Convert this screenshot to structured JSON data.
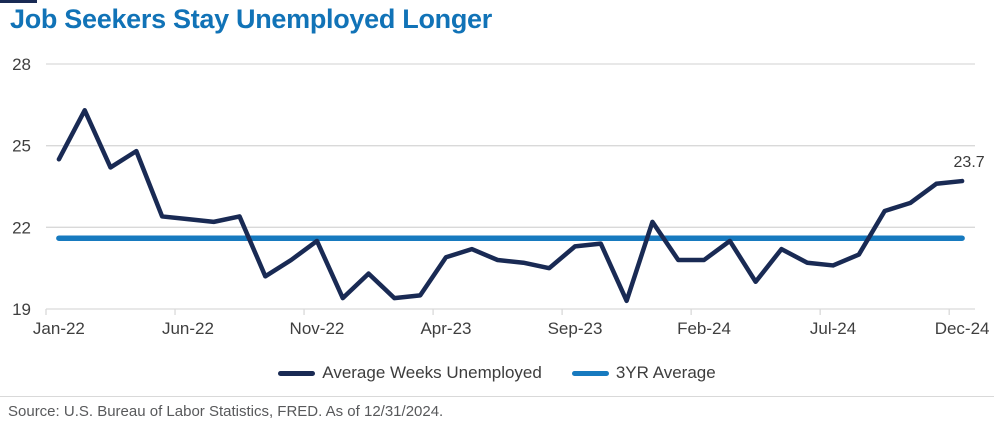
{
  "title": "Job Seekers Stay Unemployed Longer",
  "source_note": "Source: U.S. Bureau of Labor Statistics, FRED. As of 12/31/2024.",
  "colors": {
    "title": "#1173b7",
    "series_line": "#192a54",
    "average_line": "#177abf",
    "axis_text": "#3f3f3f",
    "grid": "#d9d9d9",
    "source_text": "#58595b",
    "accent_bar": "#192a54"
  },
  "legend": {
    "items": [
      {
        "label": "Average Weeks Unemployed",
        "color": "#192a54"
      },
      {
        "label": "3YR Average",
        "color": "#177abf"
      }
    ]
  },
  "chart_data": {
    "type": "line",
    "title": "Job Seekers Stay Unemployed Longer",
    "x": [
      "Jan-22",
      "Feb-22",
      "Mar-22",
      "Apr-22",
      "May-22",
      "Jun-22",
      "Jul-22",
      "Aug-22",
      "Sep-22",
      "Oct-22",
      "Nov-22",
      "Dec-22",
      "Jan-23",
      "Feb-23",
      "Mar-23",
      "Apr-23",
      "May-23",
      "Jun-23",
      "Jul-23",
      "Aug-23",
      "Sep-23",
      "Oct-23",
      "Nov-23",
      "Dec-23",
      "Jan-24",
      "Feb-24",
      "Mar-24",
      "Apr-24",
      "May-24",
      "Jun-24",
      "Jul-24",
      "Aug-24",
      "Sep-24",
      "Oct-24",
      "Nov-24",
      "Dec-24"
    ],
    "series": [
      {
        "name": "Average Weeks Unemployed",
        "color": "#192a54",
        "values": [
          24.5,
          26.3,
          24.2,
          24.8,
          22.4,
          22.3,
          22.2,
          22.4,
          20.2,
          20.8,
          21.5,
          19.4,
          20.3,
          19.4,
          19.5,
          20.9,
          21.2,
          20.8,
          20.7,
          20.5,
          21.3,
          21.4,
          19.3,
          22.2,
          20.8,
          20.8,
          21.5,
          20.0,
          21.2,
          20.7,
          20.6,
          21.0,
          22.6,
          22.9,
          23.6,
          23.7
        ]
      },
      {
        "name": "3YR Average",
        "color": "#177abf",
        "constant_value": 21.6
      }
    ],
    "ylim": [
      19,
      28
    ],
    "yticks": [
      19,
      22,
      25,
      28
    ],
    "xticks": [
      "Jan-22",
      "Jun-22",
      "Nov-22",
      "Apr-23",
      "Sep-23",
      "Feb-24",
      "Jul-24",
      "Dec-24"
    ],
    "grid": "horizontal-only",
    "legend_position": "bottom",
    "last_value_label": "23.7"
  }
}
